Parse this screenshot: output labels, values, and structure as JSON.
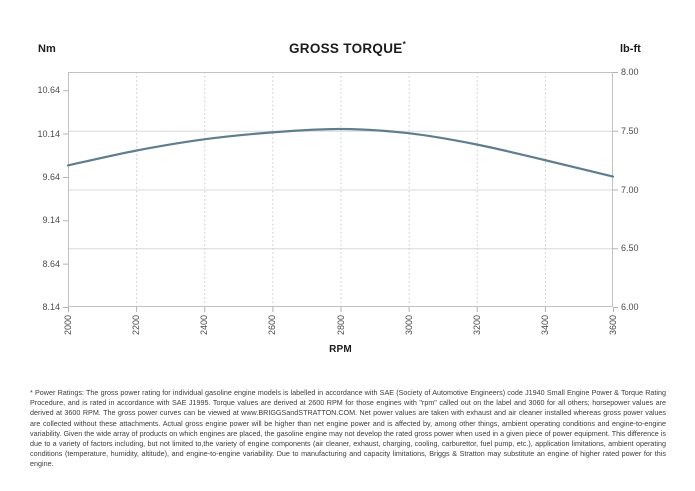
{
  "chart": {
    "title": "GROSS TORQUE",
    "title_mark": "*",
    "left_axis_unit": "Nm",
    "right_axis_unit": "lb-ft",
    "x_axis_label": "RPM"
  },
  "chart_data": {
    "type": "line",
    "title": "GROSS TORQUE*",
    "xlabel": "RPM",
    "ylabel_left": "Nm",
    "ylabel_right": "lb-ft",
    "x": [
      2000,
      2200,
      2400,
      2600,
      2800,
      3000,
      3200,
      3400,
      3600
    ],
    "series": [
      {
        "name": "Gross Torque (Nm)",
        "values": [
          9.77,
          9.94,
          10.07,
          10.15,
          10.19,
          10.14,
          10.01,
          9.83,
          9.64
        ]
      },
      {
        "name": "Gross Torque (lb-ft)",
        "values": [
          7.205,
          7.331,
          7.427,
          7.486,
          7.515,
          7.479,
          7.383,
          7.25,
          7.11
        ]
      }
    ],
    "left_axis_ticks": [
      "10.64",
      "10.14",
      "9.64",
      "9.14",
      "8.64",
      "8.14"
    ],
    "right_axis_ticks": [
      "8.00",
      "7.50",
      "7.00",
      "6.50",
      "6.00"
    ],
    "x_ticks": [
      "2000",
      "2200",
      "2400",
      "2600",
      "2800",
      "3000",
      "3200",
      "3400",
      "3600"
    ],
    "ylim_left_nm": [
      8.14,
      10.85
    ],
    "ylim_right_lbft": [
      6.0,
      8.0
    ],
    "xlim": [
      2000,
      3600
    ],
    "x_tick_rotation": 90,
    "legend": "none",
    "grid": {
      "horizontal": "solid light gray at 0.5 lb-ft intervals",
      "vertical": "dotted light gray at 200 RPM intervals"
    },
    "curve_color": "#5e7d8e",
    "grid_color_solid": "#d9d9d9",
    "grid_color_dotted": "#c9c9c9",
    "spine_color": "#c2c2c2",
    "tick_mark_color": "#b3b3b3"
  },
  "footnote": "* Power Ratings: The gross power rating for individual gasoline engine models is labelled in accordance with SAE (Society of Automotive Engineers) code J1940 Small Engine Power & Torque Rating Procedure, and is rated in accordance with SAE J1995. Torque values are derived at 2600 RPM for those engines with \"rpm\" called out on the label and 3060 for all others; horsepower values are derived at 3600 RPM. The gross power curves can be viewed at www.BRIGGSandSTRATTON.COM. Net power values are taken with exhaust and air cleaner installed whereas gross power values are collected without these attachments. Actual gross engine power will be higher than net engine power and is affected by, among other things, ambient operating conditions and engine-to-engine variability. Given the wide array of products on which engines are placed, the gasoline engine may not develop the rated gross power when used in a given piece of power equipment. This difference is due to a variety of factors including, but not limited to,the variety of engine components (air cleaner, exhaust, charging, cooling, carburettor, fuel pump, etc.), application limitations, ambient operating conditions (temperature, humidity, altitude), and engine-to-engine variability. Due to manufacturing and capacity limitations, Briggs & Stratton may substitute an engine of higher rated power for this engine."
}
